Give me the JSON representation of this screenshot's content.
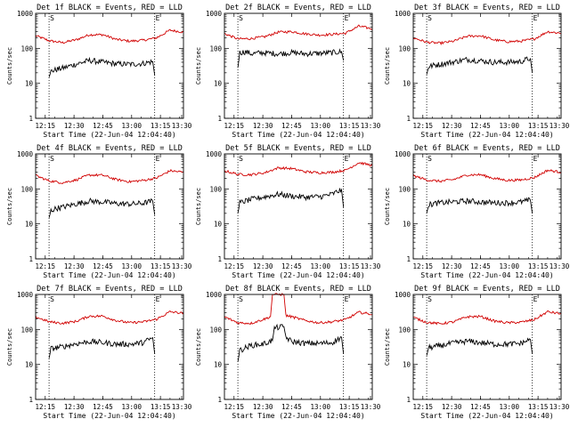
{
  "figure": {
    "xlabel": "Start Time (22-Jun-04 12:04:40)",
    "ylabel": "Counts/sec",
    "colors": {
      "events": "#000000",
      "lld": "#d10000",
      "axes": "#000000"
    }
  },
  "chart_data": [
    {
      "type": "line",
      "title": "Det 1f BLACK = Events, RED = LLD",
      "xlabel": "Start Time (22-Jun-04 12:04:40)",
      "ylabel": "Counts/sec",
      "yscale": "log",
      "ylim": [
        1,
        1000
      ],
      "yticks": [
        "1",
        "10",
        "100",
        "1000"
      ],
      "xlim_minutes": [
        10,
        87
      ],
      "xticks": [
        "12:15",
        "12:30",
        "12:45",
        "13:00",
        "13:15",
        "13:30"
      ],
      "xtick_minutes": [
        15,
        30,
        45,
        60,
        75,
        90
      ],
      "markers": [
        {
          "label": "S",
          "minute": 17
        },
        {
          "label": "E",
          "minute": 72
        }
      ],
      "series": [
        {
          "name": "LLD",
          "color": "red",
          "x": [
            10,
            17,
            24,
            31,
            38,
            45,
            52,
            59,
            66,
            73,
            80,
            87
          ],
          "values": [
            230,
            165,
            145,
            175,
            245,
            245,
            180,
            160,
            170,
            200,
            330,
            290
          ]
        },
        {
          "name": "Events",
          "color": "black",
          "x": [
            17,
            18,
            21,
            24,
            30,
            38,
            45,
            52,
            60,
            66,
            71,
            72
          ],
          "values": [
            15,
            22,
            25,
            27,
            34,
            45,
            40,
            36,
            35,
            37,
            42,
            17
          ]
        }
      ]
    },
    {
      "type": "line",
      "title": "Det 2f BLACK = Events, RED = LLD",
      "xlabel": "Start Time (22-Jun-04 12:04:40)",
      "ylabel": "Counts/sec",
      "yscale": "log",
      "ylim": [
        1,
        1000
      ],
      "yticks": [
        "1",
        "10",
        "100",
        "1000"
      ],
      "xlim_minutes": [
        10,
        87
      ],
      "xticks": [
        "12:15",
        "12:30",
        "12:45",
        "13:00",
        "13:15",
        "13:30"
      ],
      "xtick_minutes": [
        15,
        30,
        45,
        60,
        75,
        90
      ],
      "markers": [
        {
          "label": "S",
          "minute": 17
        },
        {
          "label": "E",
          "minute": 72
        }
      ],
      "series": [
        {
          "name": "LLD",
          "color": "red",
          "x": [
            10,
            17,
            24,
            31,
            38,
            45,
            52,
            59,
            66,
            73,
            80,
            87
          ],
          "values": [
            265,
            185,
            190,
            215,
            290,
            300,
            260,
            240,
            250,
            270,
            430,
            360
          ]
        },
        {
          "name": "Events",
          "color": "black",
          "x": [
            17,
            18,
            21,
            24,
            30,
            38,
            45,
            52,
            60,
            66,
            71,
            72
          ],
          "values": [
            28,
            75,
            80,
            70,
            75,
            70,
            75,
            70,
            72,
            75,
            80,
            45
          ]
        }
      ]
    },
    {
      "type": "line",
      "title": "Det 3f BLACK = Events, RED = LLD",
      "xlabel": "Start Time (22-Jun-04 12:04:40)",
      "ylabel": "Counts/sec",
      "yscale": "log",
      "ylim": [
        1,
        1000
      ],
      "yticks": [
        "1",
        "10",
        "100",
        "1000"
      ],
      "xlim_minutes": [
        10,
        87
      ],
      "xticks": [
        "12:15",
        "12:30",
        "12:45",
        "13:00",
        "13:15",
        "13:30"
      ],
      "xtick_minutes": [
        15,
        30,
        45,
        60,
        75,
        90
      ],
      "markers": [
        {
          "label": "S",
          "minute": 17
        },
        {
          "label": "E",
          "minute": 72
        }
      ],
      "series": [
        {
          "name": "LLD",
          "color": "red",
          "x": [
            10,
            17,
            24,
            31,
            38,
            45,
            52,
            59,
            66,
            73,
            80,
            87
          ],
          "values": [
            200,
            150,
            140,
            160,
            220,
            230,
            175,
            155,
            160,
            185,
            300,
            270
          ]
        },
        {
          "name": "Events",
          "color": "black",
          "x": [
            17,
            18,
            21,
            24,
            30,
            38,
            45,
            52,
            60,
            66,
            71,
            72
          ],
          "values": [
            18,
            30,
            33,
            35,
            40,
            48,
            44,
            40,
            40,
            42,
            52,
            20
          ]
        }
      ]
    },
    {
      "type": "line",
      "title": "Det 4f BLACK = Events, RED = LLD",
      "xlabel": "Start Time (22-Jun-04 12:04:40)",
      "ylabel": "Counts/sec",
      "yscale": "log",
      "ylim": [
        1,
        1000
      ],
      "yticks": [
        "1",
        "10",
        "100",
        "1000"
      ],
      "xlim_minutes": [
        10,
        87
      ],
      "xticks": [
        "12:15",
        "12:30",
        "12:45",
        "13:00",
        "13:15",
        "13:30"
      ],
      "xtick_minutes": [
        15,
        30,
        45,
        60,
        75,
        90
      ],
      "markers": [
        {
          "label": "S",
          "minute": 17
        },
        {
          "label": "E",
          "minute": 72
        }
      ],
      "series": [
        {
          "name": "LLD",
          "color": "red",
          "x": [
            10,
            17,
            24,
            31,
            38,
            45,
            52,
            59,
            66,
            73,
            80,
            87
          ],
          "values": [
            240,
            170,
            150,
            180,
            250,
            245,
            185,
            160,
            175,
            205,
            330,
            300
          ]
        },
        {
          "name": "Events",
          "color": "black",
          "x": [
            17,
            18,
            21,
            24,
            30,
            38,
            45,
            52,
            60,
            66,
            71,
            72
          ],
          "values": [
            15,
            24,
            28,
            30,
            36,
            45,
            42,
            38,
            37,
            39,
            45,
            18
          ]
        }
      ]
    },
    {
      "type": "line",
      "title": "Det 5f BLACK = Events, RED = LLD",
      "xlabel": "Start Time (22-Jun-04 12:04:40)",
      "ylabel": "Counts/sec",
      "yscale": "log",
      "ylim": [
        1,
        1000
      ],
      "yticks": [
        "1",
        "10",
        "100",
        "1000"
      ],
      "xlim_minutes": [
        10,
        87
      ],
      "xticks": [
        "12:15",
        "12:30",
        "12:45",
        "13:00",
        "13:15",
        "13:30"
      ],
      "xtick_minutes": [
        15,
        30,
        45,
        60,
        75,
        90
      ],
      "markers": [
        {
          "label": "S",
          "minute": 17
        },
        {
          "label": "E",
          "minute": 72
        }
      ],
      "series": [
        {
          "name": "LLD",
          "color": "red",
          "x": [
            10,
            17,
            24,
            31,
            38,
            45,
            52,
            59,
            66,
            73,
            80,
            87
          ],
          "values": [
            330,
            260,
            255,
            290,
            400,
            380,
            310,
            290,
            300,
            340,
            560,
            470
          ]
        },
        {
          "name": "Events",
          "color": "black",
          "x": [
            17,
            18,
            21,
            24,
            30,
            38,
            45,
            52,
            60,
            66,
            71,
            72
          ],
          "values": [
            20,
            40,
            45,
            50,
            58,
            70,
            62,
            58,
            60,
            70,
            95,
            30
          ]
        }
      ]
    },
    {
      "type": "line",
      "title": "Det 6f BLACK = Events, RED = LLD",
      "xlabel": "Start Time (22-Jun-04 12:04:40)",
      "ylabel": "Counts/sec",
      "yscale": "log",
      "ylim": [
        1,
        1000
      ],
      "yticks": [
        "1",
        "10",
        "100",
        "1000"
      ],
      "xlim_minutes": [
        10,
        87
      ],
      "xticks": [
        "12:15",
        "12:30",
        "12:45",
        "13:00",
        "13:15",
        "13:30"
      ],
      "xtick_minutes": [
        15,
        30,
        45,
        60,
        75,
        90
      ],
      "markers": [
        {
          "label": "S",
          "minute": 17
        },
        {
          "label": "E",
          "minute": 72
        }
      ],
      "series": [
        {
          "name": "LLD",
          "color": "red",
          "x": [
            10,
            17,
            24,
            31,
            38,
            45,
            52,
            59,
            66,
            73,
            80,
            87
          ],
          "values": [
            240,
            180,
            165,
            185,
            250,
            255,
            200,
            175,
            180,
            210,
            340,
            300
          ]
        },
        {
          "name": "Events",
          "color": "black",
          "x": [
            17,
            18,
            21,
            24,
            30,
            38,
            45,
            52,
            60,
            66,
            71,
            72
          ],
          "values": [
            20,
            35,
            38,
            40,
            42,
            45,
            42,
            40,
            40,
            42,
            48,
            20
          ]
        }
      ]
    },
    {
      "type": "line",
      "title": "Det 7f BLACK = Events, RED = LLD",
      "xlabel": "Start Time (22-Jun-04 12:04:40)",
      "ylabel": "Counts/sec",
      "yscale": "log",
      "ylim": [
        1,
        1000
      ],
      "yticks": [
        "1",
        "10",
        "100",
        "1000"
      ],
      "xlim_minutes": [
        10,
        87
      ],
      "xticks": [
        "12:15",
        "12:30",
        "12:45",
        "13:00",
        "13:15",
        "13:30"
      ],
      "xtick_minutes": [
        15,
        30,
        45,
        60,
        75,
        90
      ],
      "markers": [
        {
          "label": "S",
          "minute": 17
        },
        {
          "label": "E",
          "minute": 72
        }
      ],
      "series": [
        {
          "name": "LLD",
          "color": "red",
          "x": [
            10,
            17,
            24,
            31,
            38,
            45,
            52,
            59,
            66,
            73,
            80,
            87
          ],
          "values": [
            230,
            165,
            150,
            170,
            240,
            240,
            180,
            155,
            165,
            195,
            320,
            290
          ]
        },
        {
          "name": "Events",
          "color": "black",
          "x": [
            17,
            18,
            21,
            24,
            30,
            38,
            45,
            52,
            60,
            66,
            71,
            72
          ],
          "values": [
            15,
            28,
            30,
            32,
            38,
            45,
            42,
            38,
            38,
            42,
            58,
            20
          ]
        }
      ]
    },
    {
      "type": "line",
      "title": "Det 8f BLACK = Events, RED = LLD",
      "xlabel": "Start Time (22-Jun-04 12:04:40)",
      "ylabel": "Counts/sec",
      "yscale": "log",
      "ylim": [
        1,
        1000
      ],
      "yticks": [
        "1",
        "10",
        "100",
        "1000"
      ],
      "xlim_minutes": [
        10,
        87
      ],
      "xticks": [
        "12:15",
        "12:30",
        "12:45",
        "13:00",
        "13:15",
        "13:30"
      ],
      "xtick_minutes": [
        15,
        30,
        45,
        60,
        75,
        90
      ],
      "markers": [
        {
          "label": "S",
          "minute": 17
        },
        {
          "label": "E",
          "minute": 72
        }
      ],
      "series": [
        {
          "name": "LLD",
          "color": "red",
          "x": [
            10,
            17,
            24,
            31,
            34,
            35,
            41,
            42,
            45,
            52,
            59,
            66,
            73,
            80,
            87
          ],
          "values": [
            230,
            155,
            150,
            200,
            230,
            1000,
            1000,
            250,
            230,
            180,
            155,
            165,
            190,
            310,
            270
          ]
        },
        {
          "name": "Events",
          "color": "black",
          "x": [
            17,
            18,
            21,
            24,
            30,
            35,
            36,
            41,
            42,
            45,
            52,
            60,
            66,
            71,
            72
          ],
          "values": [
            12,
            25,
            30,
            35,
            38,
            48,
            110,
            120,
            60,
            45,
            40,
            40,
            42,
            60,
            20
          ]
        }
      ]
    },
    {
      "type": "line",
      "title": "Det 9f BLACK = Events, RED = LLD",
      "xlabel": "Start Time (22-Jun-04 12:04:40)",
      "ylabel": "Counts/sec",
      "yscale": "log",
      "ylim": [
        1,
        1000
      ],
      "yticks": [
        "1",
        "10",
        "100",
        "1000"
      ],
      "xlim_minutes": [
        10,
        87
      ],
      "xticks": [
        "12:15",
        "12:30",
        "12:45",
        "13:00",
        "13:15",
        "13:30"
      ],
      "xtick_minutes": [
        15,
        30,
        45,
        60,
        75,
        90
      ],
      "markers": [
        {
          "label": "S",
          "minute": 17
        },
        {
          "label": "E",
          "minute": 72
        }
      ],
      "series": [
        {
          "name": "LLD",
          "color": "red",
          "x": [
            10,
            17,
            24,
            31,
            38,
            45,
            52,
            59,
            66,
            73,
            80,
            87
          ],
          "values": [
            220,
            160,
            145,
            165,
            230,
            235,
            175,
            155,
            160,
            190,
            320,
            280
          ]
        },
        {
          "name": "Events",
          "color": "black",
          "x": [
            17,
            18,
            21,
            24,
            30,
            38,
            45,
            52,
            60,
            66,
            71,
            72
          ],
          "values": [
            18,
            30,
            32,
            34,
            40,
            46,
            42,
            38,
            38,
            40,
            52,
            20
          ]
        }
      ]
    }
  ]
}
